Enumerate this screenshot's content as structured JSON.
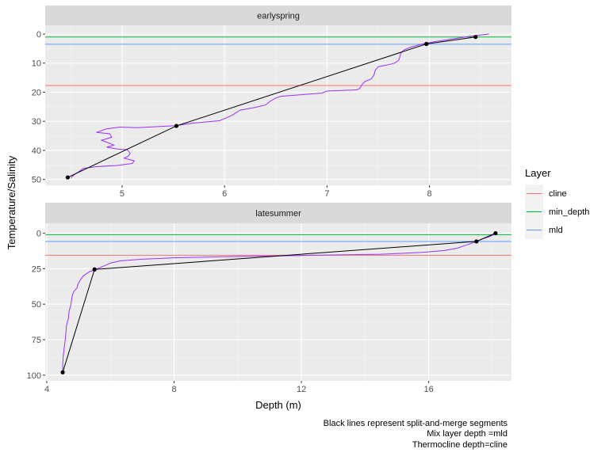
{
  "chart_data": {
    "type": "line",
    "xlabel": "Depth (m)",
    "ylabel": "Temperature/Salinity",
    "caption": [
      "Black lines represent split-and-merge segments",
      "Mix layer depth =mld",
      "Thermocline depth=cline"
    ],
    "legend": {
      "title": "Layer",
      "position": "right",
      "entries": [
        {
          "label": "cline",
          "color": "#F8766D"
        },
        {
          "label": "min_depth",
          "color": "#00BA38"
        },
        {
          "label": "mld",
          "color": "#619CFF"
        }
      ]
    },
    "profile_color": "#9B30FF",
    "segment_color": "#000000",
    "grid": true,
    "y_reversed": true,
    "panels": [
      {
        "strip": "earlyspring",
        "xlim": [
          4.25,
          8.8
        ],
        "ylim": [
          52,
          -3
        ],
        "xticks": [
          5,
          6,
          7,
          8
        ],
        "xtick_labels": [
          "5",
          "6",
          "7",
          "8"
        ],
        "yticks": [
          0,
          10,
          20,
          30,
          40,
          50
        ],
        "ytick_labels": [
          "0",
          "10",
          "20",
          "30",
          "40",
          "50"
        ],
        "hlines": {
          "cline": 17.7,
          "min_depth": 1.0,
          "mld": 3.5
        },
        "profile": [
          [
            8.58,
            0.0
          ],
          [
            8.45,
            0.5
          ],
          [
            8.35,
            1.0
          ],
          [
            8.2,
            1.8
          ],
          [
            8.05,
            2.6
          ],
          [
            7.92,
            3.5
          ],
          [
            7.82,
            4.5
          ],
          [
            7.75,
            5.5
          ],
          [
            7.72,
            6.6
          ],
          [
            7.71,
            8.0
          ],
          [
            7.7,
            9.0
          ],
          [
            7.66,
            10.0
          ],
          [
            7.58,
            10.7
          ],
          [
            7.5,
            11.2
          ],
          [
            7.47,
            12.5
          ],
          [
            7.46,
            14.0
          ],
          [
            7.43,
            15.5
          ],
          [
            7.37,
            16.3
          ],
          [
            7.34,
            17.5
          ],
          [
            7.32,
            18.7
          ],
          [
            7.29,
            19.2
          ],
          [
            7.0,
            19.6
          ],
          [
            6.95,
            20.3
          ],
          [
            6.7,
            21.0
          ],
          [
            6.55,
            21.4
          ],
          [
            6.5,
            22.0
          ],
          [
            6.45,
            23.0
          ],
          [
            6.4,
            24.4
          ],
          [
            6.3,
            25.2
          ],
          [
            6.15,
            26.2
          ],
          [
            6.08,
            27.8
          ],
          [
            6.02,
            28.8
          ],
          [
            5.95,
            29.8
          ],
          [
            5.7,
            30.6
          ],
          [
            5.52,
            31.5
          ],
          [
            5.15,
            32.2
          ],
          [
            4.98,
            32.0
          ],
          [
            4.85,
            32.6
          ],
          [
            4.75,
            33.8
          ],
          [
            4.88,
            34.3
          ],
          [
            4.9,
            35.5
          ],
          [
            4.8,
            36.5
          ],
          [
            4.85,
            37.2
          ],
          [
            4.92,
            38.2
          ],
          [
            4.85,
            38.9
          ],
          [
            4.95,
            39.5
          ],
          [
            5.05,
            39.8
          ],
          [
            5.08,
            41.0
          ],
          [
            5.06,
            42.0
          ],
          [
            5.02,
            42.7
          ],
          [
            5.12,
            43.6
          ],
          [
            5.1,
            44.5
          ],
          [
            4.95,
            45.2
          ],
          [
            4.75,
            45.6
          ],
          [
            4.62,
            46.2
          ],
          [
            4.58,
            47.3
          ],
          [
            4.54,
            48.2
          ],
          [
            4.5,
            49.5
          ]
        ],
        "segments": [
          [
            8.45,
            1.0
          ],
          [
            7.97,
            3.4
          ],
          [
            5.53,
            31.6
          ],
          [
            4.47,
            49.3
          ]
        ]
      },
      {
        "strip": "latesummer",
        "xlim": [
          3.95,
          18.6
        ],
        "ylim": [
          104,
          -7
        ],
        "xticks": [
          4,
          8,
          12,
          16
        ],
        "xtick_labels": [
          "4",
          "8",
          "12",
          "16"
        ],
        "yticks": [
          0,
          25,
          50,
          75,
          100
        ],
        "ytick_labels": [
          "0",
          "25",
          "50",
          "75",
          "100"
        ],
        "hlines": {
          "cline": 15.5,
          "min_depth": 1.0,
          "mld": 5.8
        },
        "profile": [
          [
            18.15,
            0.0
          ],
          [
            18.05,
            1.0
          ],
          [
            17.9,
            2.5
          ],
          [
            17.7,
            4.0
          ],
          [
            17.55,
            5.5
          ],
          [
            17.35,
            7.0
          ],
          [
            17.1,
            9.0
          ],
          [
            16.9,
            10.5
          ],
          [
            16.5,
            12.2
          ],
          [
            15.8,
            13.5
          ],
          [
            14.5,
            14.8
          ],
          [
            12.0,
            15.7
          ],
          [
            9.5,
            16.6
          ],
          [
            8.0,
            17.3
          ],
          [
            7.0,
            18.3
          ],
          [
            6.3,
            19.5
          ],
          [
            6.0,
            21.0
          ],
          [
            5.85,
            22.5
          ],
          [
            5.7,
            24.0
          ],
          [
            5.55,
            25.4
          ],
          [
            5.35,
            27.0
          ],
          [
            5.15,
            30.0
          ],
          [
            5.05,
            33.0
          ],
          [
            4.98,
            36.0
          ],
          [
            4.95,
            38.5
          ],
          [
            4.85,
            41.0
          ],
          [
            4.8,
            44.0
          ],
          [
            4.78,
            47.0
          ],
          [
            4.75,
            51.0
          ],
          [
            4.7,
            55.0
          ],
          [
            4.68,
            60.0
          ],
          [
            4.62,
            65.0
          ],
          [
            4.6,
            70.0
          ],
          [
            4.58,
            75.0
          ],
          [
            4.55,
            80.0
          ],
          [
            4.52,
            86.0
          ],
          [
            4.5,
            92.0
          ],
          [
            4.5,
            98.0
          ]
        ],
        "segments": [
          [
            18.1,
            0.0
          ],
          [
            17.5,
            5.8
          ],
          [
            5.5,
            25.5
          ],
          [
            4.5,
            98.0
          ]
        ]
      }
    ]
  }
}
